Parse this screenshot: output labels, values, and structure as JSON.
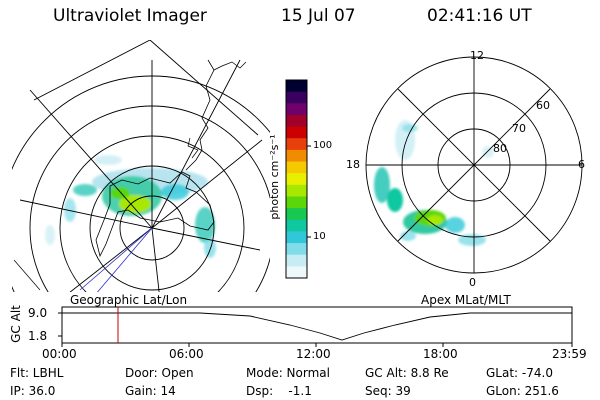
{
  "header": {
    "title": "Ultraviolet Imager",
    "date": "15 Jul 07",
    "time": "02:41:16 UT"
  },
  "left_panel": {
    "label": "Geographic Lat/Lon"
  },
  "right_panel": {
    "label": "Apex MLat/MLT",
    "mlt_labels": {
      "top": "12",
      "left": "18",
      "right": "6",
      "bottom": "0"
    },
    "lat_labels": [
      "60",
      "70",
      "80"
    ]
  },
  "colorbar": {
    "unit_label": "photon cm⁻²s⁻¹",
    "ticks": [
      "100",
      "10"
    ],
    "colors": [
      "#000030",
      "#3a0060",
      "#70006a",
      "#a0002a",
      "#cc0000",
      "#e8400a",
      "#f08c00",
      "#f5c800",
      "#e8f000",
      "#a8e800",
      "#5ad60a",
      "#18c850",
      "#10c8a0",
      "#30c8d8",
      "#80dce8",
      "#c8ecf4",
      "#eef8fb"
    ]
  },
  "altitude_plot": {
    "ylabel": "GC Alt",
    "yticks": [
      "9.0",
      "1.8"
    ],
    "xticks": [
      "00:00",
      "06:00",
      "12:00",
      "18:00",
      "23:59"
    ],
    "marker_color": "#cc0000"
  },
  "status": {
    "row1": {
      "flt": "Flt: LBHL",
      "door": "Door: Open",
      "mode": "Mode: Normal",
      "gcalt": "GC Alt: 8.8 Re",
      "glat": "GLat: -74.0"
    },
    "row2": {
      "ip": "IP: 36.0",
      "gain": "Gain: 14",
      "dsp": "Dsp:    -1.1",
      "seq": "Seq: 39",
      "glon": "GLon: 251.6"
    }
  }
}
